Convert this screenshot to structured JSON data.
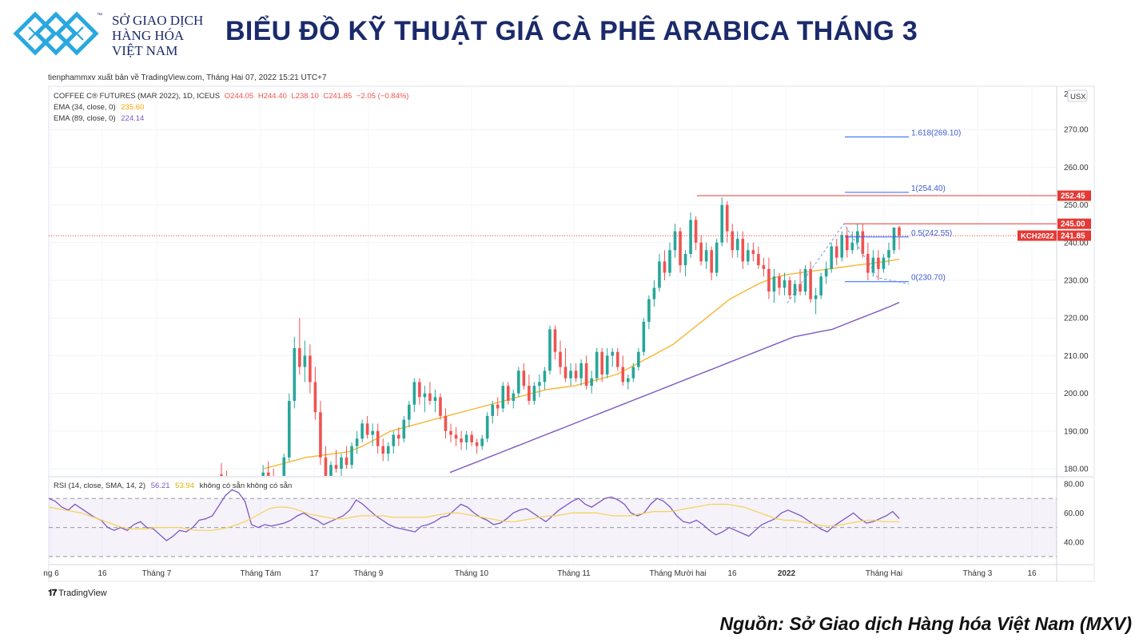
{
  "header": {
    "logo_line1": "SỞ GIAO DỊCH",
    "logo_line2": "HÀNG HÓA",
    "logo_line3": "VIỆT NAM",
    "logo_tm": "™",
    "title": "BIỂU ĐỒ KỸ THUẬT GIÁ CÀ PHÊ ARABICA THÁNG 3"
  },
  "published": "tienphammxv xuất bản về TradingView.com, Tháng Hai 07, 2022 15:21 UTC+7",
  "footer": {
    "tradingview": "TradingView",
    "source": "Nguồn: Sở Giao dịch Hàng hóa Việt Nam (MXV)"
  },
  "colors": {
    "up": "#26a69a",
    "down": "#ef5350",
    "ema34": "#f7b731",
    "ema89": "#7e57c2",
    "fib": "#2962ff",
    "level": "#e53935",
    "rsi": "#7e57c2",
    "rsi_sma": "#f7d154"
  },
  "legend": {
    "l1_prefix": "COFFEE C® FUTURES (MAR 2022), 1D, ICEUS",
    "l1_o": "O244.05",
    "l1_h": "H244.40",
    "l1_l": "L238.10",
    "l1_c": "C241.85",
    "l1_chg": "−2.05 (−0.84%)",
    "l2_label": "EMA (34, close, 0)",
    "l2_val": "235.60",
    "l3_label": "EMA (89, close, 0)",
    "l3_val": "224.14",
    "rsi_label": "RSI (14, close, SMA, 14, 2)",
    "rsi_val": "56.21",
    "rsi_sma_val": "53.94",
    "rsi_na": "không có sẵn  không có sẵn"
  },
  "chart_data": {
    "type": "candlestick",
    "currency_label": "USX",
    "symbol_label": "KCH2022",
    "y_ticks": [
      "180.00",
      "190.00",
      "200.00",
      "210.00",
      "220.00",
      "230.00",
      "240.00",
      "250.00",
      "260.00",
      "270.00"
    ],
    "y_top_tick": "2",
    "rsi_ticks": [
      "40.00",
      "60.00",
      "80.00"
    ],
    "rsi_bands": [
      30,
      50,
      70
    ],
    "x_labels": [
      "ng 6",
      "16",
      "Tháng 7",
      "Tháng Tám",
      "17",
      "Tháng 9",
      "Tháng 10",
      "Tháng 11",
      "Tháng Mười hai",
      "16",
      "2022",
      "Tháng Hai",
      "Tháng 3",
      "16"
    ],
    "price_tags": [
      {
        "label": "252.45",
        "value": 252.45
      },
      {
        "label": "245.00",
        "value": 245.0
      },
      {
        "label": "241.85",
        "value": 241.85
      }
    ],
    "fib_levels": [
      {
        "label": "1.618(269.10)",
        "value": 269.1
      },
      {
        "label": "1(254.40)",
        "value": 254.4
      },
      {
        "label": "0.5(242.55)",
        "value": 242.55
      },
      {
        "label": "0(230.70)",
        "value": 230.7
      }
    ],
    "ohlc": [
      [
        178.5,
        181.5,
        176,
        177
      ],
      [
        177,
        179.5,
        174,
        175.5
      ],
      [
        175.5,
        177,
        172,
        173
      ],
      [
        173,
        176,
        171,
        175
      ],
      [
        175,
        177,
        172.5,
        173.5
      ],
      [
        173.5,
        175,
        170,
        171
      ],
      [
        171,
        174,
        169.5,
        173
      ],
      [
        173,
        178,
        172,
        177
      ],
      [
        177,
        181,
        175,
        179
      ],
      [
        179,
        182,
        177,
        178
      ],
      [
        178,
        180,
        175,
        176
      ],
      [
        176,
        178,
        173,
        177
      ],
      [
        177,
        184,
        176,
        183
      ],
      [
        183,
        200,
        182,
        198
      ],
      [
        198,
        215,
        196,
        212
      ],
      [
        212,
        220,
        205,
        207
      ],
      [
        207,
        214,
        203,
        210
      ],
      [
        210,
        213,
        200,
        203
      ],
      [
        203,
        207,
        193,
        195
      ],
      [
        195,
        198,
        181,
        183
      ],
      [
        183,
        186,
        177,
        178
      ],
      [
        178,
        182,
        176,
        181
      ],
      [
        181,
        185,
        179,
        180
      ],
      [
        180,
        184,
        178,
        183
      ],
      [
        183,
        186,
        180,
        181
      ],
      [
        181,
        187,
        180,
        186
      ],
      [
        186,
        190,
        184,
        188
      ],
      [
        188,
        193,
        187,
        192
      ],
      [
        192,
        194,
        188,
        189
      ],
      [
        189,
        192,
        186,
        190
      ],
      [
        190,
        192,
        184,
        186
      ],
      [
        186,
        188,
        182,
        184
      ],
      [
        184,
        187,
        182,
        186
      ],
      [
        186,
        190,
        184,
        189
      ],
      [
        189,
        191,
        186,
        188
      ],
      [
        188,
        194,
        187,
        193
      ],
      [
        193,
        198,
        191,
        197
      ],
      [
        197,
        204,
        195,
        203
      ],
      [
        203,
        204,
        197,
        199
      ],
      [
        199,
        202,
        195,
        200
      ],
      [
        200,
        203,
        197,
        198
      ],
      [
        198,
        201,
        195,
        199
      ],
      [
        199,
        200,
        193,
        194
      ],
      [
        194,
        196,
        188,
        190
      ],
      [
        190,
        192,
        187,
        189
      ],
      [
        189,
        191,
        186,
        188
      ],
      [
        188,
        190,
        185,
        187
      ],
      [
        187,
        190,
        185,
        189
      ],
      [
        189,
        190,
        186,
        187
      ],
      [
        187,
        188,
        184,
        186
      ],
      [
        186,
        189,
        185,
        188
      ],
      [
        188,
        195,
        187,
        194
      ],
      [
        194,
        198,
        192,
        197
      ],
      [
        197,
        199,
        194,
        196
      ],
      [
        196,
        203,
        195,
        202
      ],
      [
        202,
        203,
        197,
        198
      ],
      [
        198,
        201,
        196,
        200
      ],
      [
        200,
        207,
        199,
        206
      ],
      [
        206,
        208,
        201,
        202
      ],
      [
        202,
        205,
        197,
        198
      ],
      [
        198,
        203,
        197,
        202
      ],
      [
        202,
        205,
        199,
        203
      ],
      [
        203,
        207,
        201,
        206
      ],
      [
        206,
        218,
        205,
        217
      ],
      [
        217,
        218,
        209,
        211
      ],
      [
        211,
        214,
        205,
        207
      ],
      [
        207,
        212,
        203,
        204
      ],
      [
        204,
        208,
        202,
        206
      ],
      [
        206,
        208,
        203,
        204
      ],
      [
        204,
        209,
        202,
        208
      ],
      [
        208,
        210,
        201,
        202
      ],
      [
        202,
        206,
        200,
        204
      ],
      [
        204,
        212,
        203,
        211
      ],
      [
        211,
        212,
        203,
        205
      ],
      [
        205,
        212,
        204,
        210
      ],
      [
        210,
        212,
        207,
        211
      ],
      [
        211,
        212,
        206,
        207
      ],
      [
        207,
        210,
        202,
        203
      ],
      [
        203,
        205,
        201,
        204
      ],
      [
        204,
        208,
        203,
        207
      ],
      [
        207,
        212,
        206,
        211
      ],
      [
        211,
        220,
        210,
        219
      ],
      [
        219,
        226,
        217,
        225
      ],
      [
        225,
        230,
        223,
        228
      ],
      [
        228,
        237,
        227,
        235
      ],
      [
        235,
        238,
        230,
        232
      ],
      [
        232,
        240,
        231,
        238
      ],
      [
        238,
        245,
        236,
        243
      ],
      [
        243,
        244,
        232,
        234
      ],
      [
        234,
        238,
        231,
        237
      ],
      [
        237,
        248,
        236,
        246
      ],
      [
        246,
        247,
        238,
        240
      ],
      [
        240,
        242,
        234,
        235
      ],
      [
        235,
        240,
        233,
        238
      ],
      [
        238,
        239,
        230,
        232
      ],
      [
        232,
        241,
        231,
        240
      ],
      [
        240,
        252,
        239,
        250
      ],
      [
        250,
        251,
        240,
        243
      ],
      [
        243,
        245,
        236,
        238
      ],
      [
        238,
        243,
        236,
        241
      ],
      [
        241,
        243,
        233,
        235
      ],
      [
        235,
        240,
        234,
        238
      ],
      [
        238,
        240,
        235,
        237
      ],
      [
        237,
        239,
        233,
        234
      ],
      [
        234,
        236,
        231,
        233
      ],
      [
        233,
        236,
        225,
        227
      ],
      [
        227,
        233,
        224,
        231
      ],
      [
        231,
        232,
        226,
        228
      ],
      [
        228,
        232,
        226,
        230
      ],
      [
        230,
        231,
        225,
        226
      ],
      [
        226,
        230,
        224,
        229
      ],
      [
        229,
        233,
        226,
        227
      ],
      [
        227,
        234,
        226,
        233
      ],
      [
        233,
        235,
        224,
        225
      ],
      [
        225,
        228,
        221,
        226
      ],
      [
        226,
        232,
        225,
        231
      ],
      [
        231,
        235,
        229,
        233
      ],
      [
        233,
        240,
        232,
        239
      ],
      [
        239,
        241,
        234,
        236
      ],
      [
        236,
        243,
        235,
        242
      ],
      [
        242,
        244,
        236,
        238
      ],
      [
        238,
        243,
        237,
        240
      ],
      [
        240,
        245,
        238,
        243
      ],
      [
        243,
        245,
        236,
        237
      ],
      [
        237,
        240,
        230,
        232
      ],
      [
        232,
        238,
        231,
        236
      ],
      [
        236,
        238,
        230,
        233
      ],
      [
        233,
        237,
        232,
        236
      ],
      [
        236,
        240,
        234,
        238
      ],
      [
        238,
        244,
        237,
        244
      ],
      [
        244.05,
        244.4,
        238.1,
        241.85
      ]
    ],
    "ema34": [
      180,
      181,
      182,
      183,
      183.5,
      184,
      184.5,
      186,
      188,
      190,
      191,
      192,
      193,
      194,
      195,
      196,
      197,
      198,
      199,
      200,
      201,
      201.5,
      202,
      203,
      204,
      205,
      207,
      209,
      211,
      213,
      216,
      219,
      222,
      225,
      227,
      229,
      230.5,
      231.5,
      232,
      232.5,
      233,
      233.5,
      234,
      234.5,
      235,
      235.6
    ],
    "ema89": [
      179,
      180,
      181,
      182,
      183,
      184,
      185,
      186,
      187,
      188,
      189,
      190,
      191,
      192,
      193,
      194,
      195,
      196,
      197,
      198,
      199,
      200,
      201,
      202,
      203,
      204,
      205,
      206,
      207,
      208,
      209,
      210,
      211,
      212,
      213,
      214,
      215,
      215.5,
      216,
      216.5,
      217,
      218,
      219,
      220,
      221,
      222,
      223,
      224.14
    ],
    "rsi": [
      70,
      68,
      64,
      62,
      66,
      63,
      60,
      57,
      55,
      50,
      48,
      50,
      48,
      52,
      54,
      50,
      49,
      45,
      41,
      44,
      48,
      47,
      50,
      55,
      56,
      58,
      65,
      72,
      76,
      74,
      68,
      52,
      50,
      52,
      51,
      52,
      53,
      55,
      58,
      60,
      57,
      55,
      52,
      54,
      56,
      58,
      62,
      69,
      66,
      62,
      58,
      55,
      52,
      50,
      49,
      48,
      47,
      51,
      52,
      54,
      57,
      58,
      62,
      66,
      64,
      60,
      57,
      55,
      52,
      53,
      56,
      60,
      62,
      63,
      60,
      57,
      54,
      58,
      62,
      65,
      68,
      70,
      66,
      64,
      67,
      70,
      71,
      69,
      66,
      60,
      58,
      60,
      66,
      70,
      68,
      64,
      58,
      54,
      53,
      55,
      52,
      48,
      45,
      47,
      50,
      48,
      46,
      44,
      48,
      52,
      54,
      56,
      60,
      62,
      60,
      58,
      55,
      52,
      49,
      47,
      51,
      54,
      57,
      60,
      56,
      53,
      54,
      56,
      58,
      61,
      56.21
    ],
    "rsi_sma": [
      64,
      63,
      62,
      61,
      60,
      58,
      56,
      54,
      52,
      50,
      49,
      49,
      49,
      50,
      50,
      50,
      50,
      49,
      48,
      48,
      48,
      49,
      50,
      52,
      54,
      57,
      60,
      63,
      64,
      64,
      63,
      61,
      59,
      58,
      57,
      56,
      56,
      57,
      58,
      58,
      58,
      58,
      57,
      57,
      57,
      57,
      57,
      58,
      59,
      60,
      60,
      59,
      58,
      57,
      56,
      55,
      54,
      54,
      55,
      56,
      57,
      58,
      58,
      59,
      60,
      60,
      60,
      60,
      59,
      58,
      58,
      58,
      59,
      60,
      61,
      61,
      61,
      62,
      63,
      64,
      65,
      66,
      66,
      66,
      65,
      64,
      62,
      60,
      58,
      56,
      55,
      55,
      54,
      53,
      52,
      51,
      51,
      52,
      53,
      54,
      55,
      55,
      54,
      54,
      53.94
    ]
  }
}
